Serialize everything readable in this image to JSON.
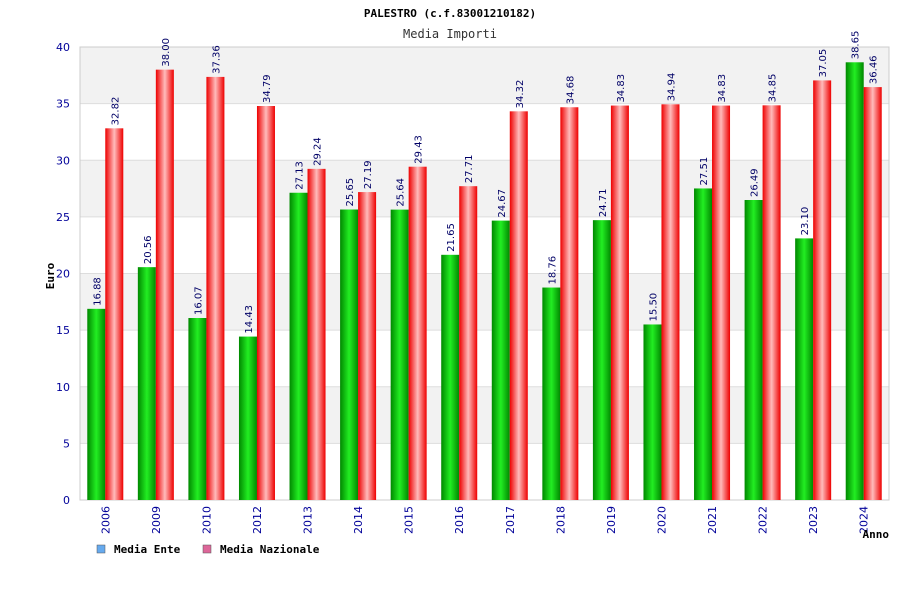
{
  "chart_data": {
    "type": "bar",
    "title": "PALESTRO (c.f.83001210182)",
    "subtitle": "Media Importi",
    "xlabel": "Anno",
    "ylabel": "Euro",
    "ylim": [
      0,
      40
    ],
    "yticks": [
      0,
      5,
      10,
      15,
      20,
      25,
      30,
      35,
      40
    ],
    "ytick_labels": [
      "0",
      "5",
      "10",
      "15",
      "20",
      "25",
      "30",
      "35",
      "40"
    ],
    "categories": [
      "2006",
      "2009",
      "2010",
      "2012",
      "2013",
      "2014",
      "2015",
      "2016",
      "2017",
      "2018",
      "2019",
      "2020",
      "2021",
      "2022",
      "2023",
      "2024"
    ],
    "series": [
      {
        "name": "Media Ente",
        "legend_label": "Media Ente",
        "values": [
          16.88,
          20.56,
          16.07,
          14.43,
          27.13,
          25.65,
          25.64,
          21.65,
          24.67,
          18.76,
          24.71,
          15.5,
          27.51,
          26.49,
          23.1,
          38.65
        ],
        "labels": [
          "16.88",
          "20.56",
          "16.07",
          "14.43",
          "27.13",
          "25.65",
          "25.64",
          "21.65",
          "24.67",
          "18.76",
          "24.71",
          "15.50",
          "27.51",
          "26.49",
          "23.10",
          "38.65"
        ],
        "legend_color": "#66aaee",
        "bar_dark": "#008800",
        "bar_light": "#22ee22"
      },
      {
        "name": "Media Nazionale",
        "legend_label": "Media Nazionale",
        "values": [
          32.82,
          38.0,
          37.36,
          34.79,
          29.24,
          27.19,
          29.43,
          27.71,
          34.32,
          34.68,
          34.83,
          34.94,
          34.83,
          34.85,
          37.05,
          36.46
        ],
        "labels": [
          "32.82",
          "38.00",
          "37.36",
          "34.79",
          "29.24",
          "27.19",
          "29.43",
          "27.71",
          "34.32",
          "34.68",
          "34.83",
          "34.94",
          "34.83",
          "34.85",
          "37.05",
          "36.46"
        ],
        "legend_color": "#dd6699",
        "bar_dark": "#ee0000",
        "bar_light": "#ffbbbb"
      }
    ],
    "grid": true,
    "legend_position": "bottom-left",
    "colors": {
      "band": "#f2f2f2",
      "grid": "#dddddd",
      "axis_text": "#000099",
      "label_text": "#000066",
      "title_text": "#000000",
      "subtitle_text": "#333333"
    }
  }
}
